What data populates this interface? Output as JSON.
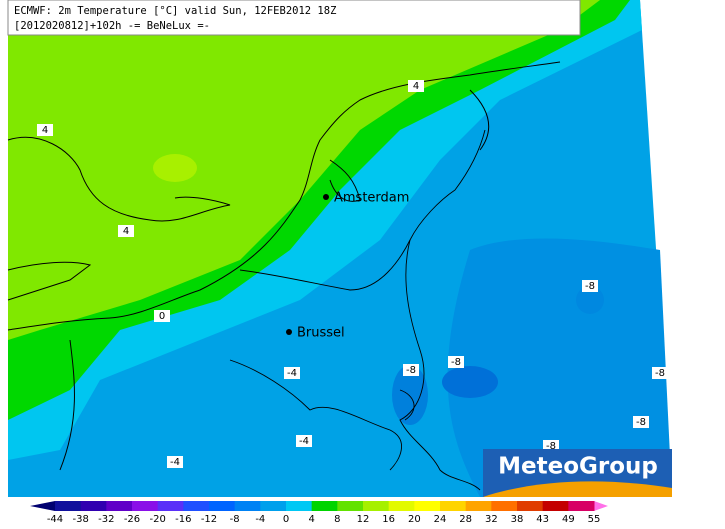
{
  "header": {
    "line1": "ECMWF: 2m Temperature [°C] valid Sun, 12FEB2012 18Z",
    "line2": "[2012020812]+102h -= BeNeLux =-"
  },
  "cities": [
    "Amsterdam",
    "Brussel"
  ],
  "contour_labels": [
    4,
    4,
    4,
    0,
    -8,
    -8,
    -8,
    -4,
    -8,
    -8,
    -4,
    -4,
    -8
  ],
  "legend": {
    "ticks": [
      -44,
      -38,
      -32,
      -26,
      -20,
      -16,
      -12,
      -8,
      -4,
      0,
      4,
      8,
      12,
      16,
      20,
      24,
      28,
      32,
      38,
      43,
      49,
      55
    ],
    "colors": [
      "#10109c",
      "#3000b0",
      "#6000c8",
      "#8a10e8",
      "#5a30f8",
      "#2050ff",
      "#0064ff",
      "#0082f4",
      "#00a0ec",
      "#00c8f4",
      "#00d400",
      "#62e200",
      "#a6f000",
      "#e2fa00",
      "#ffff00",
      "#ffd400",
      "#ffa400",
      "#ff7000",
      "#e03c00",
      "#c40000",
      "#d80064"
    ],
    "below_color": "#000070",
    "above_color": "#ff70e8"
  },
  "logo": "MeteoGroup"
}
